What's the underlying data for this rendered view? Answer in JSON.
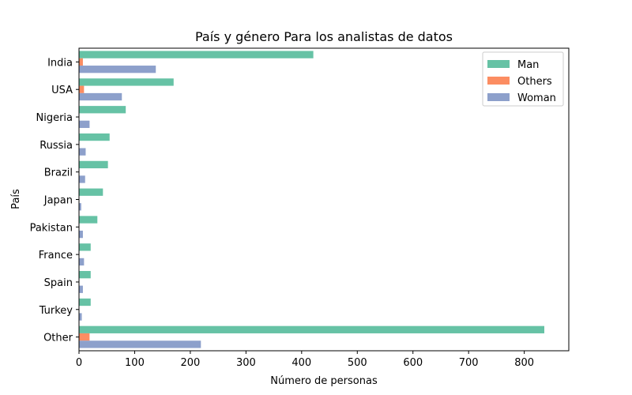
{
  "chart_data": {
    "type": "bar",
    "orientation": "horizontal",
    "title": "País y género Para los analistas de datos",
    "xlabel": "Número de personas",
    "ylabel": "País",
    "categories": [
      "India",
      "USA",
      "Nigeria",
      "Russia",
      "Brazil",
      "Japan",
      "Pakistan",
      "France",
      "Spain",
      "Turkey",
      "Other"
    ],
    "series": [
      {
        "name": "Man",
        "color": "#66c2a5",
        "values": [
          421,
          170,
          84,
          55,
          52,
          43,
          33,
          21,
          21,
          21,
          836
        ]
      },
      {
        "name": "Others",
        "color": "#fc8d62",
        "values": [
          7,
          9,
          0,
          0,
          0,
          0,
          0,
          0,
          0,
          0,
          19
        ]
      },
      {
        "name": "Woman",
        "color": "#8da0cb",
        "values": [
          138,
          77,
          19,
          12,
          11,
          4,
          7,
          9,
          7,
          5,
          219
        ]
      }
    ],
    "xlim": [
      0,
      880
    ],
    "xticks": [
      0,
      100,
      200,
      300,
      400,
      500,
      600,
      700,
      800
    ],
    "grid": false,
    "legend_position": "top-right"
  }
}
